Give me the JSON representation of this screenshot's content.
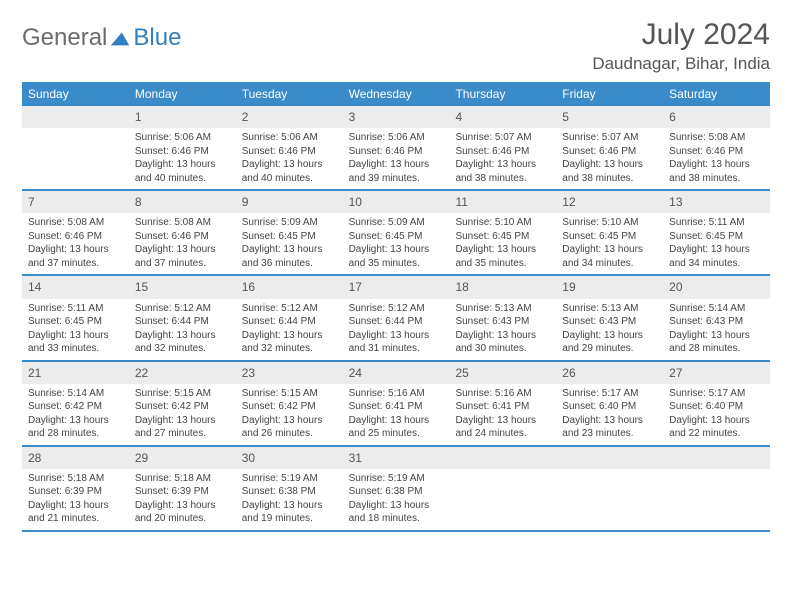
{
  "brand": {
    "part1": "General",
    "part2": "Blue"
  },
  "title": "July 2024",
  "location": "Daudnagar, Bihar, India",
  "colors": {
    "header_bg": "#3a8bc9",
    "header_text": "#ffffff",
    "daynum_bg": "#ececec",
    "border": "#3a8bc9",
    "text": "#444444",
    "title_text": "#555555",
    "logo_gray": "#6b6b6b",
    "logo_blue": "#2f7fbf"
  },
  "day_headers": [
    "Sunday",
    "Monday",
    "Tuesday",
    "Wednesday",
    "Thursday",
    "Friday",
    "Saturday"
  ],
  "weeks": [
    [
      {
        "n": "",
        "sunrise": "",
        "sunset": "",
        "daylight": ""
      },
      {
        "n": "1",
        "sunrise": "5:06 AM",
        "sunset": "6:46 PM",
        "daylight": "13 hours and 40 minutes."
      },
      {
        "n": "2",
        "sunrise": "5:06 AM",
        "sunset": "6:46 PM",
        "daylight": "13 hours and 40 minutes."
      },
      {
        "n": "3",
        "sunrise": "5:06 AM",
        "sunset": "6:46 PM",
        "daylight": "13 hours and 39 minutes."
      },
      {
        "n": "4",
        "sunrise": "5:07 AM",
        "sunset": "6:46 PM",
        "daylight": "13 hours and 38 minutes."
      },
      {
        "n": "5",
        "sunrise": "5:07 AM",
        "sunset": "6:46 PM",
        "daylight": "13 hours and 38 minutes."
      },
      {
        "n": "6",
        "sunrise": "5:08 AM",
        "sunset": "6:46 PM",
        "daylight": "13 hours and 38 minutes."
      }
    ],
    [
      {
        "n": "7",
        "sunrise": "5:08 AM",
        "sunset": "6:46 PM",
        "daylight": "13 hours and 37 minutes."
      },
      {
        "n": "8",
        "sunrise": "5:08 AM",
        "sunset": "6:46 PM",
        "daylight": "13 hours and 37 minutes."
      },
      {
        "n": "9",
        "sunrise": "5:09 AM",
        "sunset": "6:45 PM",
        "daylight": "13 hours and 36 minutes."
      },
      {
        "n": "10",
        "sunrise": "5:09 AM",
        "sunset": "6:45 PM",
        "daylight": "13 hours and 35 minutes."
      },
      {
        "n": "11",
        "sunrise": "5:10 AM",
        "sunset": "6:45 PM",
        "daylight": "13 hours and 35 minutes."
      },
      {
        "n": "12",
        "sunrise": "5:10 AM",
        "sunset": "6:45 PM",
        "daylight": "13 hours and 34 minutes."
      },
      {
        "n": "13",
        "sunrise": "5:11 AM",
        "sunset": "6:45 PM",
        "daylight": "13 hours and 34 minutes."
      }
    ],
    [
      {
        "n": "14",
        "sunrise": "5:11 AM",
        "sunset": "6:45 PM",
        "daylight": "13 hours and 33 minutes."
      },
      {
        "n": "15",
        "sunrise": "5:12 AM",
        "sunset": "6:44 PM",
        "daylight": "13 hours and 32 minutes."
      },
      {
        "n": "16",
        "sunrise": "5:12 AM",
        "sunset": "6:44 PM",
        "daylight": "13 hours and 32 minutes."
      },
      {
        "n": "17",
        "sunrise": "5:12 AM",
        "sunset": "6:44 PM",
        "daylight": "13 hours and 31 minutes."
      },
      {
        "n": "18",
        "sunrise": "5:13 AM",
        "sunset": "6:43 PM",
        "daylight": "13 hours and 30 minutes."
      },
      {
        "n": "19",
        "sunrise": "5:13 AM",
        "sunset": "6:43 PM",
        "daylight": "13 hours and 29 minutes."
      },
      {
        "n": "20",
        "sunrise": "5:14 AM",
        "sunset": "6:43 PM",
        "daylight": "13 hours and 28 minutes."
      }
    ],
    [
      {
        "n": "21",
        "sunrise": "5:14 AM",
        "sunset": "6:42 PM",
        "daylight": "13 hours and 28 minutes."
      },
      {
        "n": "22",
        "sunrise": "5:15 AM",
        "sunset": "6:42 PM",
        "daylight": "13 hours and 27 minutes."
      },
      {
        "n": "23",
        "sunrise": "5:15 AM",
        "sunset": "6:42 PM",
        "daylight": "13 hours and 26 minutes."
      },
      {
        "n": "24",
        "sunrise": "5:16 AM",
        "sunset": "6:41 PM",
        "daylight": "13 hours and 25 minutes."
      },
      {
        "n": "25",
        "sunrise": "5:16 AM",
        "sunset": "6:41 PM",
        "daylight": "13 hours and 24 minutes."
      },
      {
        "n": "26",
        "sunrise": "5:17 AM",
        "sunset": "6:40 PM",
        "daylight": "13 hours and 23 minutes."
      },
      {
        "n": "27",
        "sunrise": "5:17 AM",
        "sunset": "6:40 PM",
        "daylight": "13 hours and 22 minutes."
      }
    ],
    [
      {
        "n": "28",
        "sunrise": "5:18 AM",
        "sunset": "6:39 PM",
        "daylight": "13 hours and 21 minutes."
      },
      {
        "n": "29",
        "sunrise": "5:18 AM",
        "sunset": "6:39 PM",
        "daylight": "13 hours and 20 minutes."
      },
      {
        "n": "30",
        "sunrise": "5:19 AM",
        "sunset": "6:38 PM",
        "daylight": "13 hours and 19 minutes."
      },
      {
        "n": "31",
        "sunrise": "5:19 AM",
        "sunset": "6:38 PM",
        "daylight": "13 hours and 18 minutes."
      },
      {
        "n": "",
        "sunrise": "",
        "sunset": "",
        "daylight": ""
      },
      {
        "n": "",
        "sunrise": "",
        "sunset": "",
        "daylight": ""
      },
      {
        "n": "",
        "sunrise": "",
        "sunset": "",
        "daylight": ""
      }
    ]
  ],
  "labels": {
    "sunrise": "Sunrise: ",
    "sunset": "Sunset: ",
    "daylight": "Daylight: "
  }
}
